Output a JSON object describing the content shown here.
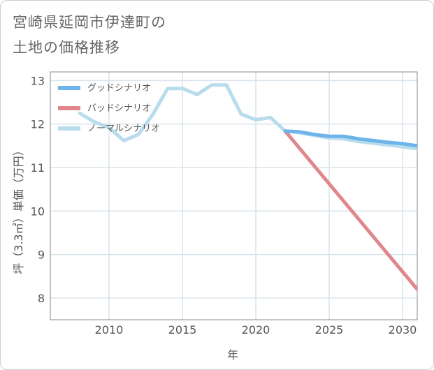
{
  "title_lines": [
    "宮崎県延岡市伊達町の",
    "土地の価格推移"
  ],
  "chart_data": {
    "type": "line",
    "title": "宮崎県延岡市伊達町の土地の価格推移",
    "xlabel": "年",
    "ylabel": "坪（3.3㎡）単価（万円）",
    "xlim": [
      2006,
      2031
    ],
    "ylim": [
      7.5,
      13.2
    ],
    "xticks": [
      2010,
      2015,
      2020,
      2025,
      2030
    ],
    "yticks": [
      8,
      9,
      10,
      11,
      12,
      13
    ],
    "grid": true,
    "legend_position": "top-left",
    "series": [
      {
        "name": "グッドシナリオ",
        "color": "#6cb4ea",
        "x": [
          2022,
          2023,
          2024,
          2025,
          2026,
          2027,
          2028,
          2029,
          2030,
          2031
        ],
        "y": [
          11.84,
          11.82,
          11.76,
          11.72,
          11.72,
          11.66,
          11.62,
          11.58,
          11.55,
          11.5
        ]
      },
      {
        "name": "バッドシナリオ",
        "color": "#e0868c",
        "x": [
          2022,
          2031
        ],
        "y": [
          11.84,
          8.2
        ]
      },
      {
        "name": "ノーマルシナリオ",
        "color": "#b8dcec",
        "x": [
          2008,
          2009,
          2010,
          2011,
          2012,
          2013,
          2014,
          2015,
          2016,
          2017,
          2018,
          2019,
          2020,
          2021,
          2022,
          2023,
          2024,
          2025,
          2026,
          2027,
          2028,
          2029,
          2030,
          2031
        ],
        "y": [
          12.25,
          12.05,
          11.92,
          11.62,
          11.76,
          12.23,
          12.82,
          12.82,
          12.68,
          12.9,
          12.9,
          12.23,
          12.1,
          12.15,
          11.84,
          11.8,
          11.74,
          11.68,
          11.66,
          11.6,
          11.56,
          11.52,
          11.48,
          11.43
        ]
      }
    ]
  }
}
